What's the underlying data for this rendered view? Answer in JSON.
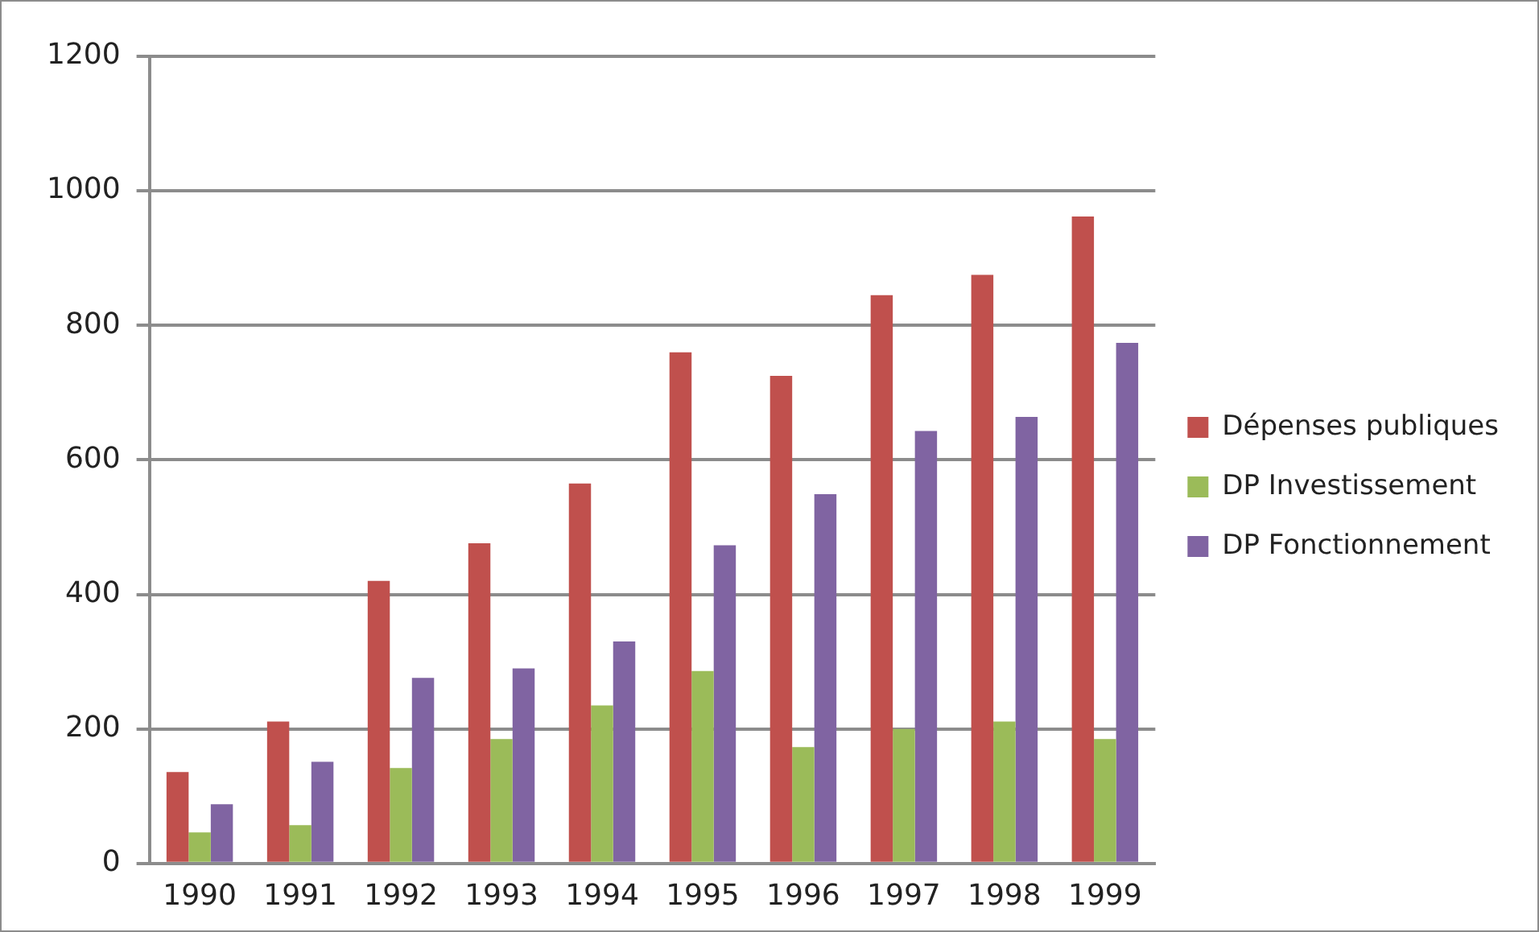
{
  "chart_data": {
    "type": "bar",
    "categories": [
      "1990",
      "1991",
      "1992",
      "1993",
      "1994",
      "1995",
      "1996",
      "1997",
      "1998",
      "1999"
    ],
    "series": [
      {
        "name": "Dépenses publiques",
        "color": "#c0504d",
        "values": [
          136,
          211,
          420,
          476,
          565,
          760,
          725,
          845,
          875,
          962
        ]
      },
      {
        "name": "DP Investissement",
        "color": "#9bbb59",
        "values": [
          46,
          57,
          142,
          185,
          235,
          286,
          173,
          200,
          211,
          185
        ]
      },
      {
        "name": "DP Fonctionnement",
        "color": "#8064a2",
        "values": [
          88,
          151,
          276,
          290,
          330,
          473,
          549,
          643,
          664,
          774
        ]
      }
    ],
    "ylim": [
      0,
      1200
    ],
    "yticks": [
      0,
      200,
      400,
      600,
      800,
      1000,
      1200
    ],
    "grid": "y",
    "legend": "right"
  }
}
